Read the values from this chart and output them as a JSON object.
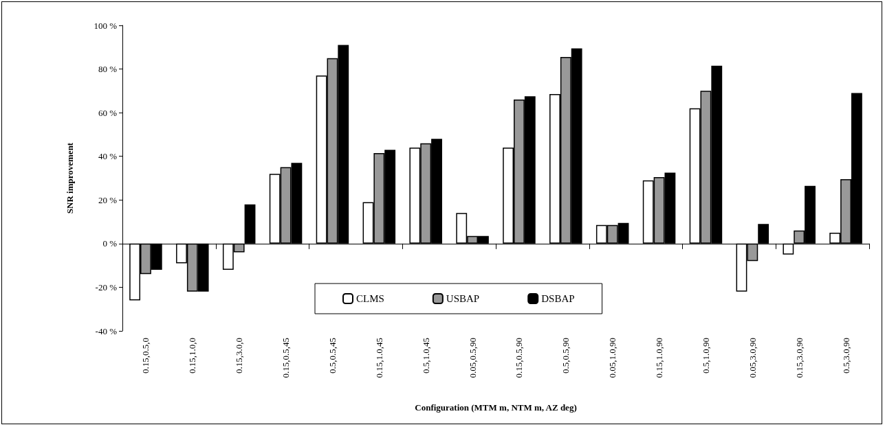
{
  "chart_data": {
    "type": "bar",
    "ylabel": "SNR improvement",
    "xlabel": "Configuration (MTM m, NTM m, AZ deg)",
    "categories": [
      "0.15,0.5,0",
      "0.15,1.0,0",
      "0.15,3.0,0",
      "0.15,0.5,45",
      "0.5,0.5,45",
      "0.15,1.0,45",
      "0.5,1.0,45",
      "0.05,0.5,90",
      "0.15,0.5,90",
      "0.5,0.5,90",
      "0.05,1.0,90",
      "0.15,1.0,90",
      "0.5,1.0,90",
      "0.05,3.0,90",
      "0.15,3.0,90",
      "0.5,3.0,90"
    ],
    "series": [
      {
        "name": "CLMS",
        "color": "#ffffff",
        "values": [
          -26,
          -9,
          -12,
          32,
          77,
          19,
          44,
          14,
          44,
          68.5,
          8.5,
          29,
          62,
          -22,
          -5,
          5
        ]
      },
      {
        "name": "USBAP",
        "color": "#999999",
        "values": [
          -14,
          -22,
          -4,
          35,
          85,
          41.5,
          46,
          3.5,
          66,
          85.5,
          8.5,
          30.5,
          70,
          -8,
          6,
          29.5
        ]
      },
      {
        "name": "DSBAP",
        "color": "#000000",
        "values": [
          -12,
          -22,
          18,
          37,
          91,
          43,
          48,
          3.5,
          67.5,
          89.5,
          9.5,
          32.5,
          81.5,
          9,
          26.5,
          69
        ]
      }
    ],
    "ylim": [
      -40,
      100
    ],
    "yticks": [
      {
        "value": -40,
        "label": "-40 %"
      },
      {
        "value": -20,
        "label": "-20 %"
      },
      {
        "value": 0,
        "label": "0 %"
      },
      {
        "value": 20,
        "label": "20 %"
      },
      {
        "value": 40,
        "label": "40 %"
      },
      {
        "value": 60,
        "label": "60 %"
      },
      {
        "value": 80,
        "label": "80 %"
      },
      {
        "value": 100,
        "label": "100 %"
      }
    ],
    "legend": "bottom"
  }
}
